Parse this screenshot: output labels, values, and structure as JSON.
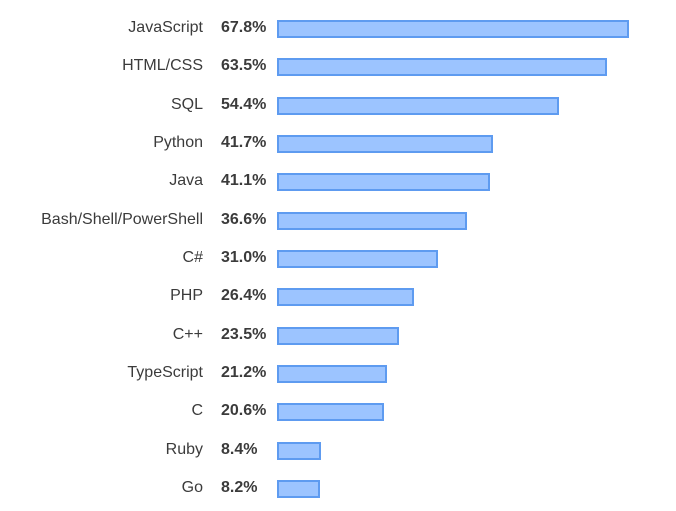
{
  "chart_data": {
    "type": "bar",
    "orientation": "horizontal",
    "categories": [
      "JavaScript",
      "HTML/CSS",
      "SQL",
      "Python",
      "Java",
      "Bash/Shell/PowerShell",
      "C#",
      "PHP",
      "C++",
      "TypeScript",
      "C",
      "Ruby",
      "Go"
    ],
    "values": [
      67.8,
      63.5,
      54.4,
      41.7,
      41.1,
      36.6,
      31.0,
      26.4,
      23.5,
      21.2,
      20.6,
      8.4,
      8.2
    ],
    "value_labels": [
      "67.8%",
      "63.5%",
      "54.4%",
      "41.7%",
      "41.1%",
      "36.6%",
      "31.0%",
      "26.4%",
      "23.5%",
      "21.2%",
      "20.6%",
      "8.4%",
      "8.2%"
    ],
    "title": "",
    "xlabel": "",
    "ylabel": "",
    "grid": false,
    "legend": "none",
    "colors": {
      "bar_fill": "#9cc4ff",
      "bar_border": "#5e9bf0",
      "text": "#3b3b3b"
    }
  }
}
